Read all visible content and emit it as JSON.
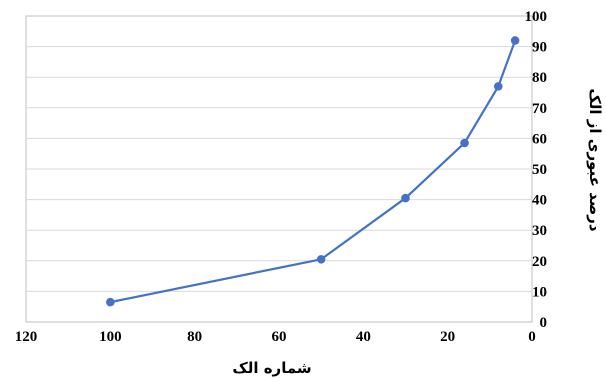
{
  "chart_data": {
    "type": "line",
    "title": "",
    "xlabel": "شماره الک",
    "ylabel": "درصد عبوری از الک",
    "x_reversed": true,
    "xlim": [
      0,
      120
    ],
    "ylim": [
      0,
      100
    ],
    "x_ticks": [
      120,
      100,
      80,
      60,
      40,
      20,
      0
    ],
    "y_ticks": [
      0,
      10,
      20,
      30,
      40,
      50,
      60,
      70,
      80,
      90,
      100
    ],
    "grid": "horizontal",
    "legend": "none",
    "series": [
      {
        "color": "#4472C4",
        "x": [
          100,
          50,
          30,
          16,
          8,
          4
        ],
        "y": [
          6.5,
          20.5,
          40.5,
          58.5,
          77,
          92
        ]
      }
    ]
  }
}
